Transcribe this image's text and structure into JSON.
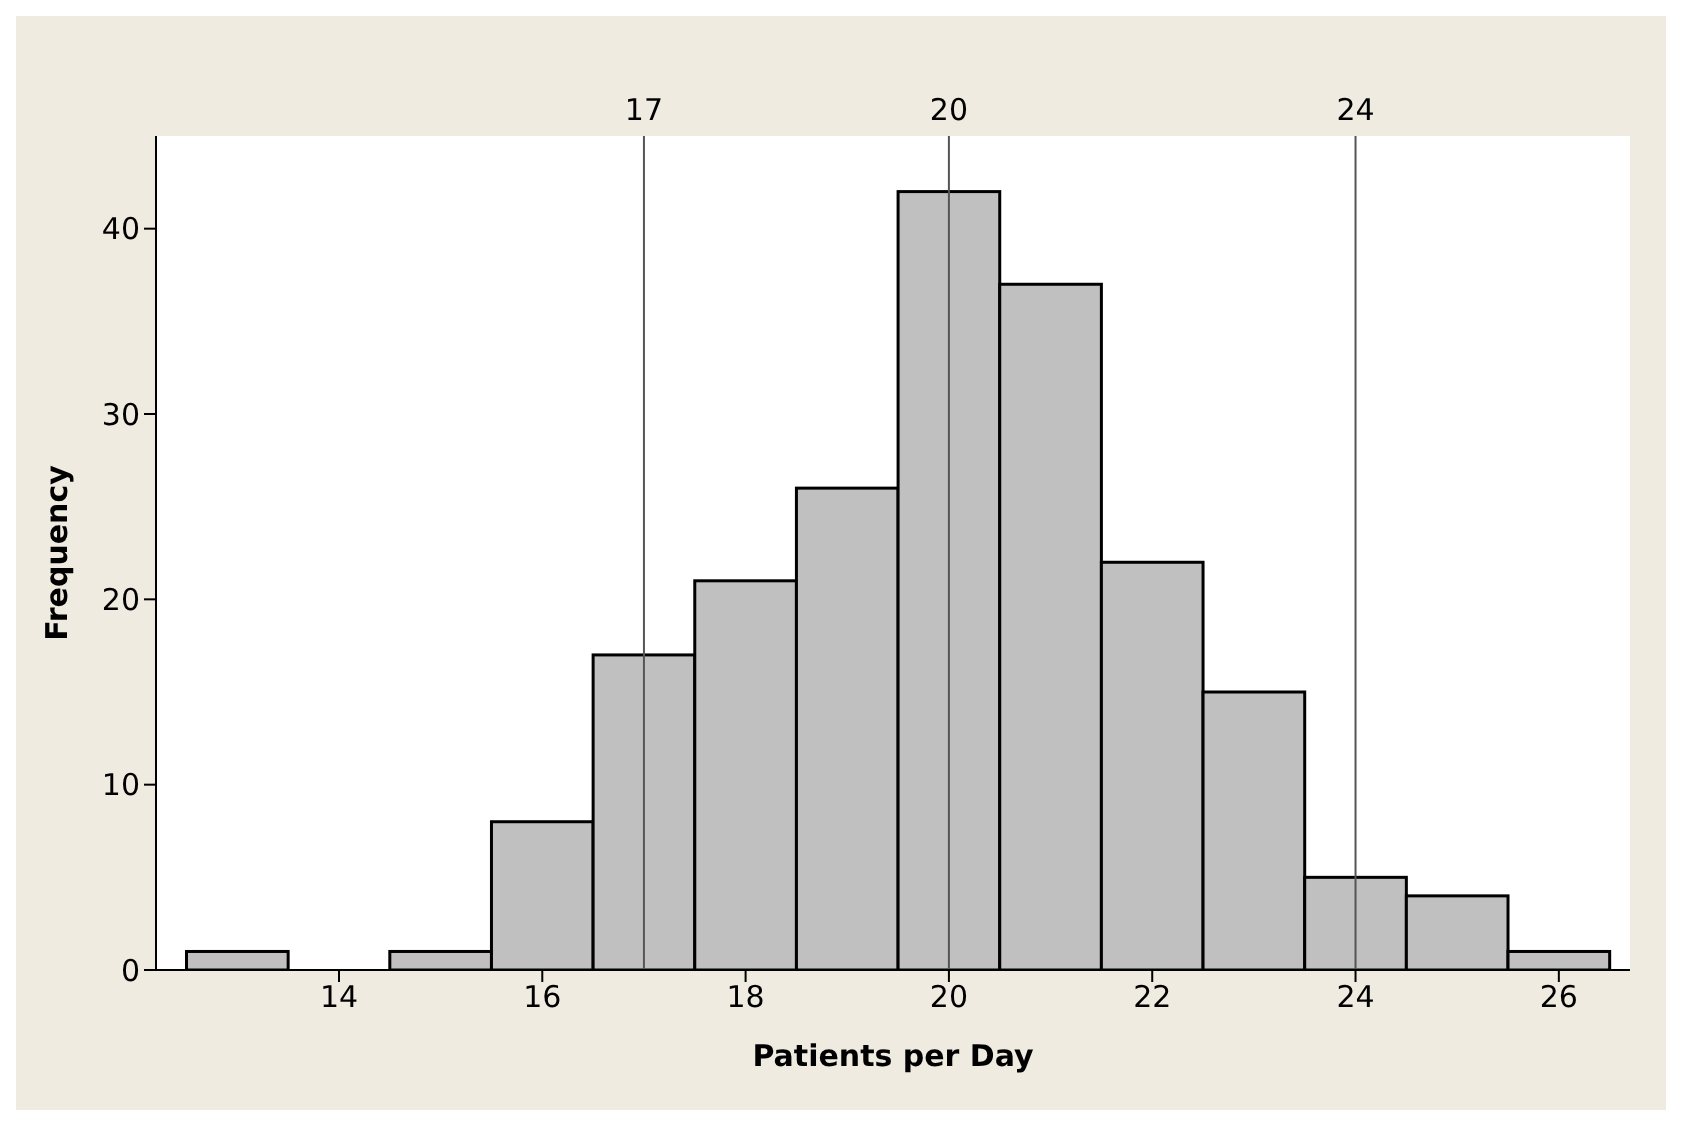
{
  "chart_data": {
    "type": "histogram",
    "xlabel": "Patients per Day",
    "ylabel": "Frequency",
    "bins": [
      12.5,
      13.5,
      14.5,
      15.5,
      16.5,
      17.5,
      18.5,
      19.5,
      20.5,
      21.5,
      22.5,
      23.5,
      24.5,
      25.5,
      26.5
    ],
    "values": [
      1,
      0,
      1,
      8,
      17,
      21,
      26,
      42,
      37,
      22,
      15,
      5,
      4,
      1
    ],
    "color": "#c0c0c0",
    "xlim": [
      12.2,
      26.7
    ],
    "xticks": [
      14,
      16,
      18,
      20,
      22,
      24,
      26
    ],
    "ylim": [
      0,
      45
    ],
    "yticks": [
      0,
      10,
      20,
      30,
      40
    ],
    "ref_lines": [
      {
        "axis": "x",
        "value": 17,
        "label": "17"
      },
      {
        "axis": "x",
        "value": 20,
        "label": "20"
      },
      {
        "axis": "x",
        "value": 24,
        "label": "24"
      }
    ],
    "grid": false,
    "legend": false
  }
}
